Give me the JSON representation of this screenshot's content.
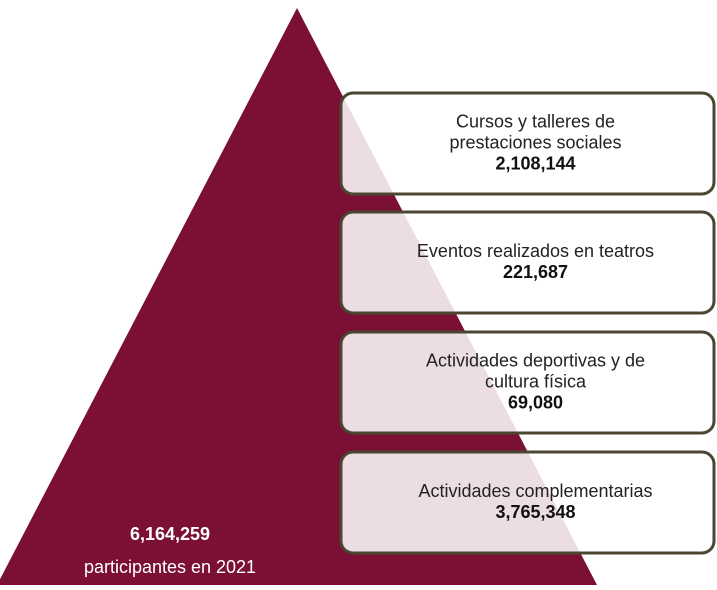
{
  "total": {
    "value": "6,164,259",
    "caption": "participantes en 2021"
  },
  "items": [
    {
      "label": [
        "Cursos y talleres de",
        "prestaciones sociales"
      ],
      "value": "2,108,144"
    },
    {
      "label": [
        "Eventos realizados en teatros"
      ],
      "value": "221,687"
    },
    {
      "label": [
        "Actividades deportivas y de",
        "cultura física"
      ],
      "value": "69,080"
    },
    {
      "label": [
        "Actividades complementarias"
      ],
      "value": "3,765,348"
    }
  ]
}
